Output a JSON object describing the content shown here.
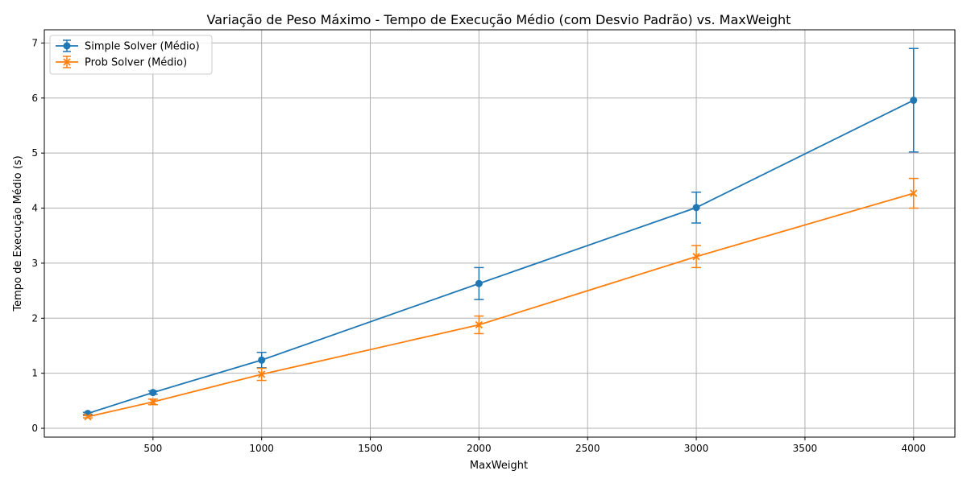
{
  "chart_data": {
    "type": "line",
    "title": "Variação de Peso Máximo - Tempo de Execução Médio (com Desvio Padrão) vs. MaxWeight",
    "xlabel": "MaxWeight",
    "ylabel": "Tempo de Execução Médio (s)",
    "xlim": [
      0,
      4190
    ],
    "ylim": [
      -0.16,
      7.24
    ],
    "x_ticks": [
      500,
      1000,
      1500,
      2000,
      2500,
      3000,
      3500,
      4000
    ],
    "y_ticks": [
      0,
      1,
      2,
      3,
      4,
      5,
      6,
      7
    ],
    "grid": true,
    "legend_position": "top-left",
    "x": [
      200,
      500,
      1000,
      2000,
      3000,
      4000
    ],
    "series": [
      {
        "name": "Simple Solver (Médio)",
        "color": "#1f77b4",
        "marker": "circle",
        "values": [
          0.27,
          0.65,
          1.24,
          2.63,
          4.01,
          5.96
        ],
        "errors": [
          0.02,
          0.03,
          0.14,
          0.29,
          0.28,
          0.94
        ]
      },
      {
        "name": "Prob Solver (Médio)",
        "color": "#ff7f0e",
        "marker": "x",
        "values": [
          0.21,
          0.48,
          0.98,
          1.88,
          3.12,
          4.27
        ],
        "errors": [
          0.02,
          0.05,
          0.11,
          0.16,
          0.2,
          0.27
        ]
      }
    ]
  }
}
